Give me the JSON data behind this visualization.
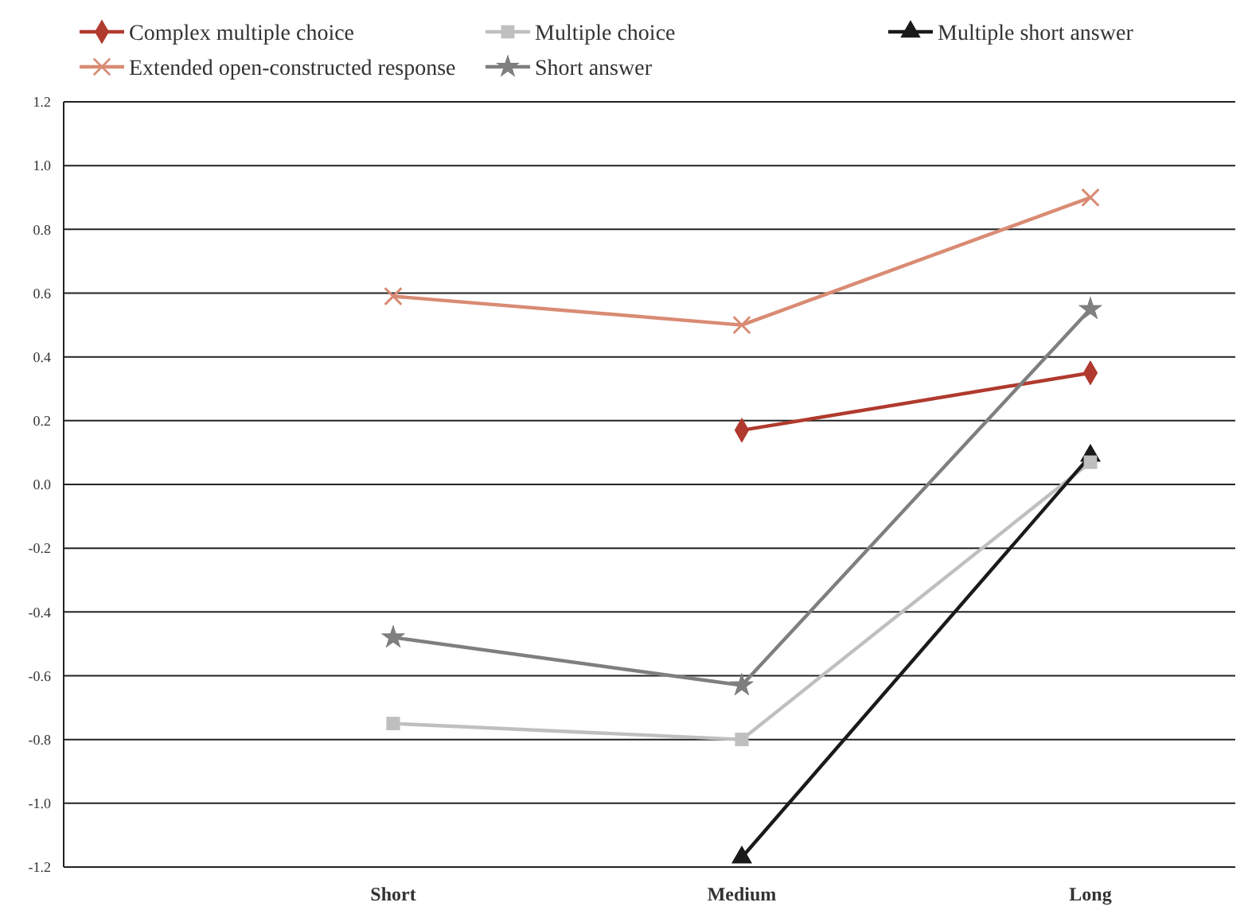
{
  "chart_data": {
    "type": "line",
    "categories": [
      "Short",
      "Medium",
      "Long"
    ],
    "series": [
      {
        "name": "Complex multiple choice",
        "color": "#b03a2e",
        "marker": "diamond",
        "values": [
          null,
          0.17,
          0.35
        ]
      },
      {
        "name": "Multiple choice",
        "color": "#bfbfbf",
        "marker": "square",
        "values": [
          -0.75,
          -0.8,
          0.07
        ]
      },
      {
        "name": "Multiple short answer",
        "color": "#1a1a1a",
        "marker": "triangle",
        "values": [
          null,
          -1.17,
          0.09
        ]
      },
      {
        "name": "Extended open-constructed response",
        "color": "#d98b73",
        "marker": "cross",
        "values": [
          0.59,
          0.5,
          0.9
        ]
      },
      {
        "name": "Short answer",
        "color": "#7f7f7f",
        "marker": "star",
        "values": [
          -0.48,
          -0.63,
          0.55
        ]
      }
    ],
    "ylim": [
      -1.2,
      1.2
    ],
    "yticks": [
      {
        "value": -1.2,
        "label": "-1.2"
      },
      {
        "value": -1,
        "label": "-1.0"
      },
      {
        "value": -0.8,
        "label": "-0.8"
      },
      {
        "value": -0.6,
        "label": "-0.6"
      },
      {
        "value": -0.4,
        "label": "-0.4"
      },
      {
        "value": -0.2,
        "label": "-0.2"
      },
      {
        "value": 0,
        "label": "0.0"
      },
      {
        "value": 0.2,
        "label": "0.2"
      },
      {
        "value": 0.4,
        "label": "0.4"
      },
      {
        "value": 0.6,
        "label": "0.6"
      },
      {
        "value": 0.8,
        "label": "0.8"
      },
      {
        "value": 1,
        "label": "1.0"
      },
      {
        "value": 1.2,
        "label": "1.2"
      }
    ],
    "grid": "y",
    "legend": "top"
  }
}
